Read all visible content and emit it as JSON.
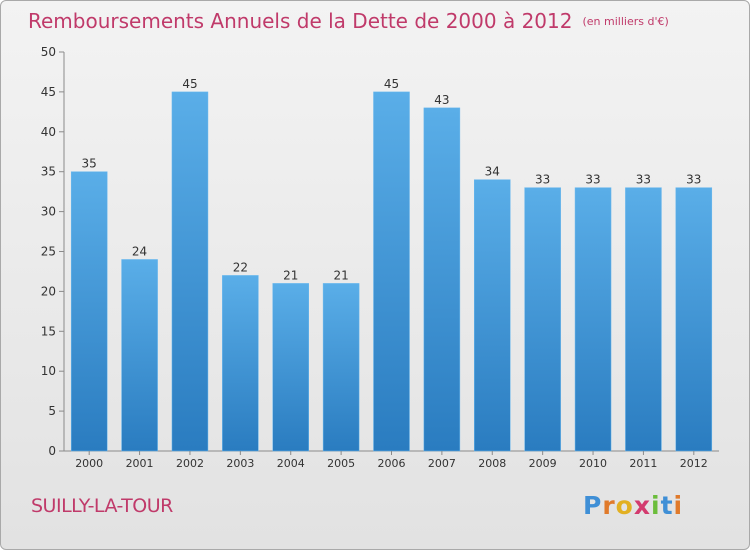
{
  "title": "Remboursements Annuels de la Dette de 2000 à 2012",
  "unit": "(en milliers d'€)",
  "place": "SUILLY-LA-TOUR",
  "logo": "Proxiti",
  "colors": {
    "bar": "#3f97d9",
    "title": "#c03a6a"
  },
  "chart_data": {
    "type": "bar",
    "title": "Remboursements Annuels de la Dette de 2000 à 2012",
    "categories": [
      "2000",
      "2001",
      "2002",
      "2003",
      "2004",
      "2005",
      "2006",
      "2007",
      "2008",
      "2009",
      "2010",
      "2011",
      "2012"
    ],
    "values": [
      35,
      24,
      45,
      22,
      21,
      21,
      45,
      43,
      34,
      33,
      33,
      33,
      33
    ],
    "ylim": [
      0,
      50
    ],
    "yticks": [
      0,
      5,
      10,
      15,
      20,
      25,
      30,
      35,
      40,
      45,
      50
    ],
    "grid": false,
    "xlabel": "",
    "ylabel": ""
  }
}
